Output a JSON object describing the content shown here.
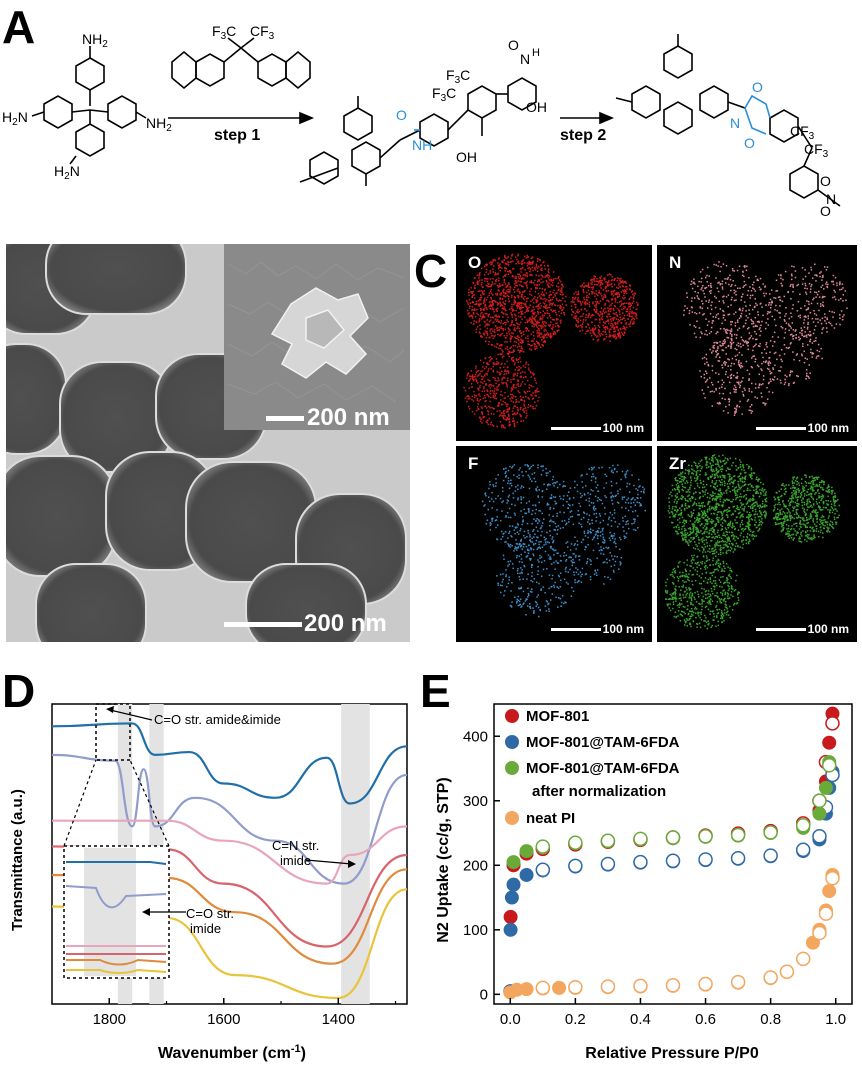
{
  "panels": {
    "A": "A",
    "B": "B",
    "C": "C",
    "D": "D",
    "E": "E"
  },
  "scheme": {
    "nh2": "NH",
    "h2n": "H",
    "n2": "N",
    "sub2": "2",
    "cf3": "CF",
    "f3c": "F",
    "c": "C",
    "sub3": "3",
    "step1": "step 1",
    "step2": "step 2",
    "nh": "NH",
    "n_h": "N",
    "h": "H",
    "oh": "OH",
    "ho": "OH",
    "o": "O",
    "n": "N",
    "imide_color": "#2a8fd8"
  },
  "tem": {
    "scale_main": "200 nm",
    "scale_inset": "200 nm"
  },
  "edx": {
    "tiles": [
      {
        "label": "O",
        "scale": "100 nm",
        "color": "#d21e1e"
      },
      {
        "label": "N",
        "scale": "100 nm",
        "color": "#e08a9a"
      },
      {
        "label": "F",
        "scale": "100 nm",
        "color": "#3d8fc8"
      },
      {
        "label": "Zr",
        "scale": "100 nm",
        "color": "#3aa62f"
      }
    ]
  },
  "ftir": {
    "ylabel": "Transmittance (a.u.)",
    "xlabel_main": "Wavenumber (cm",
    "xlabel_sup": "-1",
    "xlabel_end": ")",
    "xticks": [
      "1800",
      "1600",
      "1400"
    ],
    "annotation_top": "C=O str. amide&imide",
    "annotation_co_1": "C=O str.",
    "annotation_co_2": "imide",
    "annotation_cn_1": "C=N str.",
    "annotation_cn_2": "imide",
    "colors": [
      "#1f6fa8",
      "#8f9ccc",
      "#e8a6bb",
      "#d9636a",
      "#e08a3c",
      "#e8c43a"
    ]
  },
  "chart_data": [
    {
      "type": "line",
      "title": "",
      "xlabel": "Wavenumber (cm-1)",
      "ylabel": "Transmittance (a.u.)",
      "xlim": [
        1900,
        1280
      ],
      "x_reversed": true,
      "ticks_x": [
        1800,
        1600,
        1400
      ],
      "shaded_bands": [
        [
          1785,
          1760
        ],
        [
          1730,
          1705
        ],
        [
          1395,
          1345
        ]
      ],
      "series": [
        {
          "color": "#1f6fa8",
          "points": [
            [
              1900,
              0.95
            ],
            [
              1760,
              0.96
            ],
            [
              1720,
              0.85
            ],
            [
              1660,
              0.86
            ],
            [
              1600,
              0.75
            ],
            [
              1510,
              0.7
            ],
            [
              1420,
              0.84
            ],
            [
              1380,
              0.68
            ],
            [
              1280,
              0.88
            ]
          ]
        },
        {
          "color": "#8f9ccc",
          "points": [
            [
              1900,
              0.85
            ],
            [
              1790,
              0.83
            ],
            [
              1760,
              0.6
            ],
            [
              1740,
              0.8
            ],
            [
              1720,
              0.6
            ],
            [
              1650,
              0.7
            ],
            [
              1510,
              0.55
            ],
            [
              1390,
              0.4
            ],
            [
              1280,
              0.78
            ]
          ]
        },
        {
          "color": "#e8a6bb",
          "points": [
            [
              1900,
              0.62
            ],
            [
              1700,
              0.62
            ],
            [
              1600,
              0.55
            ],
            [
              1420,
              0.4
            ],
            [
              1380,
              0.5
            ],
            [
              1280,
              0.6
            ]
          ]
        },
        {
          "color": "#d9636a",
          "points": [
            [
              1900,
              0.53
            ],
            [
              1700,
              0.52
            ],
            [
              1600,
              0.4
            ],
            [
              1420,
              0.18
            ],
            [
              1280,
              0.5
            ]
          ]
        },
        {
          "color": "#e08a3c",
          "points": [
            [
              1900,
              0.43
            ],
            [
              1700,
              0.42
            ],
            [
              1580,
              0.3
            ],
            [
              1410,
              0.12
            ],
            [
              1280,
              0.45
            ]
          ]
        },
        {
          "color": "#e8c43a",
          "points": [
            [
              1900,
              0.32
            ],
            [
              1700,
              0.28
            ],
            [
              1580,
              0.08
            ],
            [
              1400,
              0.0
            ],
            [
              1280,
              0.38
            ]
          ]
        }
      ]
    },
    {
      "type": "scatter",
      "title": "",
      "xlabel": "Relative Pressure P/P0",
      "ylabel": "N2 Uptake (cc/g, STP)",
      "xlim": [
        -0.05,
        1.05
      ],
      "ylim": [
        -15,
        450
      ],
      "xticks": [
        "0.0",
        "0.2",
        "0.4",
        "0.6",
        "0.8",
        "1.0"
      ],
      "yticks": [
        "0",
        "100",
        "200",
        "300",
        "400"
      ],
      "legend_position": "top-left",
      "series": [
        {
          "name": "MOF-801",
          "color": "#c8191c",
          "adsorption": [
            [
              0.001,
              120
            ],
            [
              0.01,
              200
            ],
            [
              0.05,
              218
            ],
            [
              0.1,
              225
            ],
            [
              0.2,
              232
            ],
            [
              0.3,
              236
            ],
            [
              0.4,
              239
            ],
            [
              0.5,
              242
            ],
            [
              0.6,
              245
            ],
            [
              0.7,
              248
            ],
            [
              0.8,
              252
            ],
            [
              0.9,
              262
            ],
            [
              0.95,
              285
            ],
            [
              0.97,
              330
            ],
            [
              0.98,
              390
            ],
            [
              0.99,
              435
            ]
          ],
          "desorption": [
            [
              0.99,
              420
            ],
            [
              0.97,
              360
            ],
            [
              0.95,
              300
            ],
            [
              0.9,
              265
            ],
            [
              0.8,
              253
            ],
            [
              0.7,
              249
            ],
            [
              0.6,
              246
            ],
            [
              0.5,
              243
            ],
            [
              0.4,
              240
            ],
            [
              0.3,
              237
            ],
            [
              0.2,
              233
            ],
            [
              0.1,
              226
            ]
          ]
        },
        {
          "name": "MOF-801@TAM-6FDA",
          "color": "#2f6aa6",
          "adsorption": [
            [
              0.0,
              5
            ],
            [
              0.001,
              100
            ],
            [
              0.005,
              150
            ],
            [
              0.01,
              170
            ],
            [
              0.05,
              185
            ],
            [
              0.1,
              192
            ],
            [
              0.2,
              198
            ],
            [
              0.3,
              201
            ],
            [
              0.4,
              204
            ],
            [
              0.5,
              206
            ],
            [
              0.6,
              208
            ],
            [
              0.7,
              210
            ],
            [
              0.8,
              214
            ],
            [
              0.9,
              222
            ],
            [
              0.95,
              240
            ],
            [
              0.97,
              280
            ],
            [
              0.98,
              320
            ],
            [
              0.99,
              345
            ]
          ],
          "desorption": [
            [
              0.99,
              340
            ],
            [
              0.97,
              290
            ],
            [
              0.95,
              245
            ],
            [
              0.9,
              224
            ],
            [
              0.8,
              215
            ],
            [
              0.7,
              211
            ],
            [
              0.6,
              209
            ],
            [
              0.5,
              207
            ],
            [
              0.4,
              205
            ],
            [
              0.3,
              202
            ],
            [
              0.2,
              199
            ],
            [
              0.1,
              193
            ]
          ]
        },
        {
          "name": "MOF-801@TAM-6FDA after normalization",
          "color": "#6aaa3a",
          "adsorption": [
            [
              0.01,
              205
            ],
            [
              0.05,
              222
            ],
            [
              0.1,
              228
            ],
            [
              0.2,
              234
            ],
            [
              0.3,
              237
            ],
            [
              0.4,
              240
            ],
            [
              0.5,
              242
            ],
            [
              0.6,
              244
            ],
            [
              0.7,
              246
            ],
            [
              0.8,
              250
            ],
            [
              0.9,
              258
            ],
            [
              0.95,
              280
            ],
            [
              0.97,
              320
            ],
            [
              0.98,
              360
            ]
          ],
          "desorption": [
            [
              0.98,
              355
            ],
            [
              0.95,
              300
            ],
            [
              0.9,
              262
            ],
            [
              0.8,
              251
            ],
            [
              0.7,
              247
            ],
            [
              0.6,
              245
            ],
            [
              0.5,
              243
            ],
            [
              0.4,
              241
            ],
            [
              0.3,
              238
            ],
            [
              0.2,
              235
            ],
            [
              0.1,
              229
            ]
          ]
        },
        {
          "name": "neat PI",
          "color": "#f2a65e",
          "adsorption": [
            [
              0.0,
              3
            ],
            [
              0.02,
              7
            ],
            [
              0.05,
              8
            ],
            [
              0.1,
              9
            ],
            [
              0.15,
              10
            ],
            [
              0.2,
              10
            ],
            [
              0.3,
              11
            ],
            [
              0.4,
              12
            ],
            [
              0.5,
              13
            ],
            [
              0.6,
              15
            ],
            [
              0.7,
              18
            ],
            [
              0.8,
              25
            ],
            [
              0.85,
              35
            ],
            [
              0.9,
              55
            ],
            [
              0.93,
              80
            ],
            [
              0.95,
              100
            ],
            [
              0.97,
              130
            ],
            [
              0.98,
              160
            ],
            [
              0.99,
              185
            ]
          ],
          "desorption": [
            [
              0.99,
              180
            ],
            [
              0.97,
              125
            ],
            [
              0.95,
              95
            ],
            [
              0.9,
              55
            ],
            [
              0.85,
              35
            ],
            [
              0.8,
              26
            ],
            [
              0.7,
              19
            ],
            [
              0.6,
              16
            ],
            [
              0.5,
              14
            ],
            [
              0.4,
              13
            ],
            [
              0.3,
              12
            ],
            [
              0.2,
              11
            ],
            [
              0.1,
              10
            ]
          ]
        }
      ]
    }
  ]
}
